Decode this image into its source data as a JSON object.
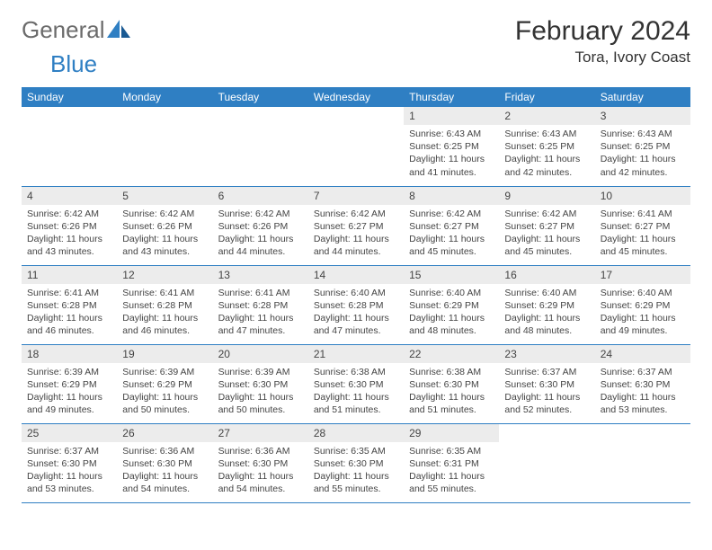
{
  "logo": {
    "text1": "General",
    "text2": "Blue"
  },
  "title": "February 2024",
  "location": "Tora, Ivory Coast",
  "colors": {
    "header_bg": "#2f7fc3",
    "header_text": "#ffffff",
    "daynum_bg": "#ececec",
    "row_border": "#2f7fc3",
    "logo_gray": "#6b6b6b",
    "logo_blue": "#2f7fc3"
  },
  "day_headers": [
    "Sunday",
    "Monday",
    "Tuesday",
    "Wednesday",
    "Thursday",
    "Friday",
    "Saturday"
  ],
  "weeks": [
    [
      null,
      null,
      null,
      null,
      {
        "n": "1",
        "sr": "6:43 AM",
        "ss": "6:25 PM",
        "dl": "11 hours and 41 minutes."
      },
      {
        "n": "2",
        "sr": "6:43 AM",
        "ss": "6:25 PM",
        "dl": "11 hours and 42 minutes."
      },
      {
        "n": "3",
        "sr": "6:43 AM",
        "ss": "6:25 PM",
        "dl": "11 hours and 42 minutes."
      }
    ],
    [
      {
        "n": "4",
        "sr": "6:42 AM",
        "ss": "6:26 PM",
        "dl": "11 hours and 43 minutes."
      },
      {
        "n": "5",
        "sr": "6:42 AM",
        "ss": "6:26 PM",
        "dl": "11 hours and 43 minutes."
      },
      {
        "n": "6",
        "sr": "6:42 AM",
        "ss": "6:26 PM",
        "dl": "11 hours and 44 minutes."
      },
      {
        "n": "7",
        "sr": "6:42 AM",
        "ss": "6:27 PM",
        "dl": "11 hours and 44 minutes."
      },
      {
        "n": "8",
        "sr": "6:42 AM",
        "ss": "6:27 PM",
        "dl": "11 hours and 45 minutes."
      },
      {
        "n": "9",
        "sr": "6:42 AM",
        "ss": "6:27 PM",
        "dl": "11 hours and 45 minutes."
      },
      {
        "n": "10",
        "sr": "6:41 AM",
        "ss": "6:27 PM",
        "dl": "11 hours and 45 minutes."
      }
    ],
    [
      {
        "n": "11",
        "sr": "6:41 AM",
        "ss": "6:28 PM",
        "dl": "11 hours and 46 minutes."
      },
      {
        "n": "12",
        "sr": "6:41 AM",
        "ss": "6:28 PM",
        "dl": "11 hours and 46 minutes."
      },
      {
        "n": "13",
        "sr": "6:41 AM",
        "ss": "6:28 PM",
        "dl": "11 hours and 47 minutes."
      },
      {
        "n": "14",
        "sr": "6:40 AM",
        "ss": "6:28 PM",
        "dl": "11 hours and 47 minutes."
      },
      {
        "n": "15",
        "sr": "6:40 AM",
        "ss": "6:29 PM",
        "dl": "11 hours and 48 minutes."
      },
      {
        "n": "16",
        "sr": "6:40 AM",
        "ss": "6:29 PM",
        "dl": "11 hours and 48 minutes."
      },
      {
        "n": "17",
        "sr": "6:40 AM",
        "ss": "6:29 PM",
        "dl": "11 hours and 49 minutes."
      }
    ],
    [
      {
        "n": "18",
        "sr": "6:39 AM",
        "ss": "6:29 PM",
        "dl": "11 hours and 49 minutes."
      },
      {
        "n": "19",
        "sr": "6:39 AM",
        "ss": "6:29 PM",
        "dl": "11 hours and 50 minutes."
      },
      {
        "n": "20",
        "sr": "6:39 AM",
        "ss": "6:30 PM",
        "dl": "11 hours and 50 minutes."
      },
      {
        "n": "21",
        "sr": "6:38 AM",
        "ss": "6:30 PM",
        "dl": "11 hours and 51 minutes."
      },
      {
        "n": "22",
        "sr": "6:38 AM",
        "ss": "6:30 PM",
        "dl": "11 hours and 51 minutes."
      },
      {
        "n": "23",
        "sr": "6:37 AM",
        "ss": "6:30 PM",
        "dl": "11 hours and 52 minutes."
      },
      {
        "n": "24",
        "sr": "6:37 AM",
        "ss": "6:30 PM",
        "dl": "11 hours and 53 minutes."
      }
    ],
    [
      {
        "n": "25",
        "sr": "6:37 AM",
        "ss": "6:30 PM",
        "dl": "11 hours and 53 minutes."
      },
      {
        "n": "26",
        "sr": "6:36 AM",
        "ss": "6:30 PM",
        "dl": "11 hours and 54 minutes."
      },
      {
        "n": "27",
        "sr": "6:36 AM",
        "ss": "6:30 PM",
        "dl": "11 hours and 54 minutes."
      },
      {
        "n": "28",
        "sr": "6:35 AM",
        "ss": "6:30 PM",
        "dl": "11 hours and 55 minutes."
      },
      {
        "n": "29",
        "sr": "6:35 AM",
        "ss": "6:31 PM",
        "dl": "11 hours and 55 minutes."
      },
      null,
      null
    ]
  ],
  "labels": {
    "sunrise": "Sunrise:",
    "sunset": "Sunset:",
    "daylight": "Daylight:"
  }
}
